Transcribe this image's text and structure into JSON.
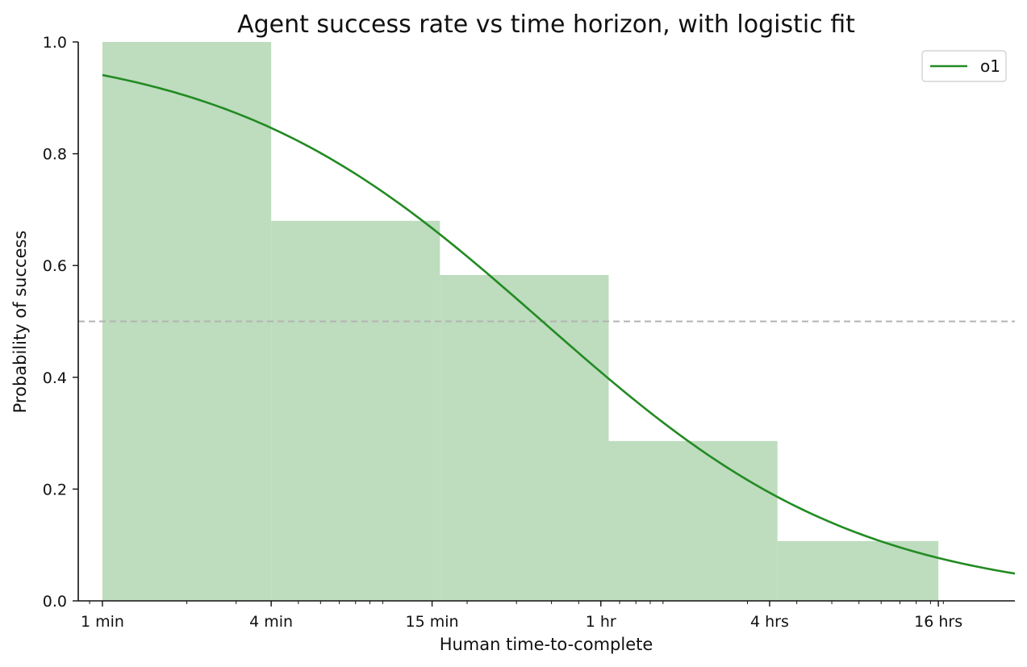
{
  "chart_data": {
    "type": "bar+line",
    "title": "Agent success rate vs time horizon, with logistic fit",
    "xlabel": "Human time-to-complete",
    "ylabel": "Probability of success",
    "x_scale": "log",
    "x_unit": "minutes",
    "xlim": [
      0.82,
      1800
    ],
    "ylim": [
      0,
      1.0
    ],
    "x_ticks": [
      {
        "value": 1,
        "label": "1 min"
      },
      {
        "value": 4,
        "label": "4 min"
      },
      {
        "value": 15,
        "label": "15 min"
      },
      {
        "value": 60,
        "label": "1 hr"
      },
      {
        "value": 240,
        "label": "4 hrs"
      },
      {
        "value": 960,
        "label": "16 hrs"
      }
    ],
    "y_ticks": [
      {
        "value": 0.0,
        "label": "0.0"
      },
      {
        "value": 0.2,
        "label": "0.2"
      },
      {
        "value": 0.4,
        "label": "0.4"
      },
      {
        "value": 0.6,
        "label": "0.6"
      },
      {
        "value": 0.8,
        "label": "0.8"
      },
      {
        "value": 1.0,
        "label": "1.0"
      }
    ],
    "bins": [
      {
        "x_start": 1,
        "x_end": 4,
        "value": 1.0
      },
      {
        "x_start": 4,
        "x_end": 16,
        "value": 0.68
      },
      {
        "x_start": 16,
        "x_end": 64,
        "value": 0.583
      },
      {
        "x_start": 64,
        "x_end": 256,
        "value": 0.286
      },
      {
        "x_start": 256,
        "x_end": 960,
        "value": 0.107
      }
    ],
    "fit_series": {
      "name": "o1",
      "type": "logistic",
      "midpoint_minutes": 40,
      "x_range": [
        1,
        1800
      ],
      "points": [
        [
          1,
          0.937
        ],
        [
          4,
          0.845
        ],
        [
          15,
          0.67
        ],
        [
          40,
          0.5
        ],
        [
          60,
          0.415
        ],
        [
          240,
          0.2
        ],
        [
          960,
          0.088
        ],
        [
          1800,
          0.04
        ]
      ]
    },
    "reference_line": {
      "y": 0.5,
      "style": "dashed",
      "color": "#b3b3b3"
    },
    "grid": false,
    "legend": {
      "position": "top-right",
      "entries": [
        "o1"
      ]
    },
    "colors": {
      "bars": "#bedcbe",
      "line": "#228b22",
      "axis": "#111111"
    }
  }
}
